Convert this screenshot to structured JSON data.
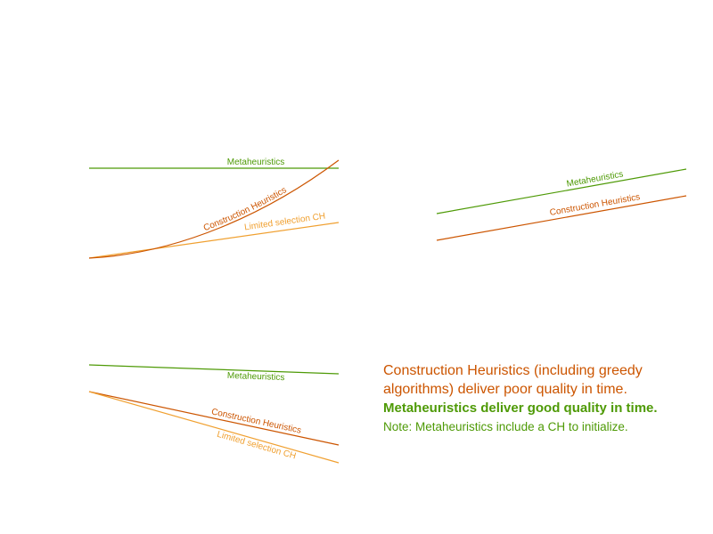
{
  "colors": {
    "metaheuristics": "#4e9a06",
    "construction": "#cc5500",
    "limited": "#f0a030"
  },
  "panels": {
    "top_left": {
      "metaheuristics_label": "Metaheuristics",
      "construction_label": "Construction Heuristics",
      "limited_label": "Limited selection CH"
    },
    "top_right": {
      "metaheuristics_label": "Metaheuristics",
      "construction_label": "Construction Heuristics"
    },
    "bottom_left": {
      "metaheuristics_label": "Metaheuristics",
      "construction_label": "Construction Heuristics",
      "limited_label": "Limited selection CH"
    }
  },
  "notes": {
    "construction_line1": "Construction Heuristics (including greedy",
    "construction_line2": "algorithms) deliver poor quality in time.",
    "metaheuristics_line": "Metaheuristics deliver good quality in time.",
    "init_line": "Note: Metaheuristics include a CH to initialize."
  }
}
